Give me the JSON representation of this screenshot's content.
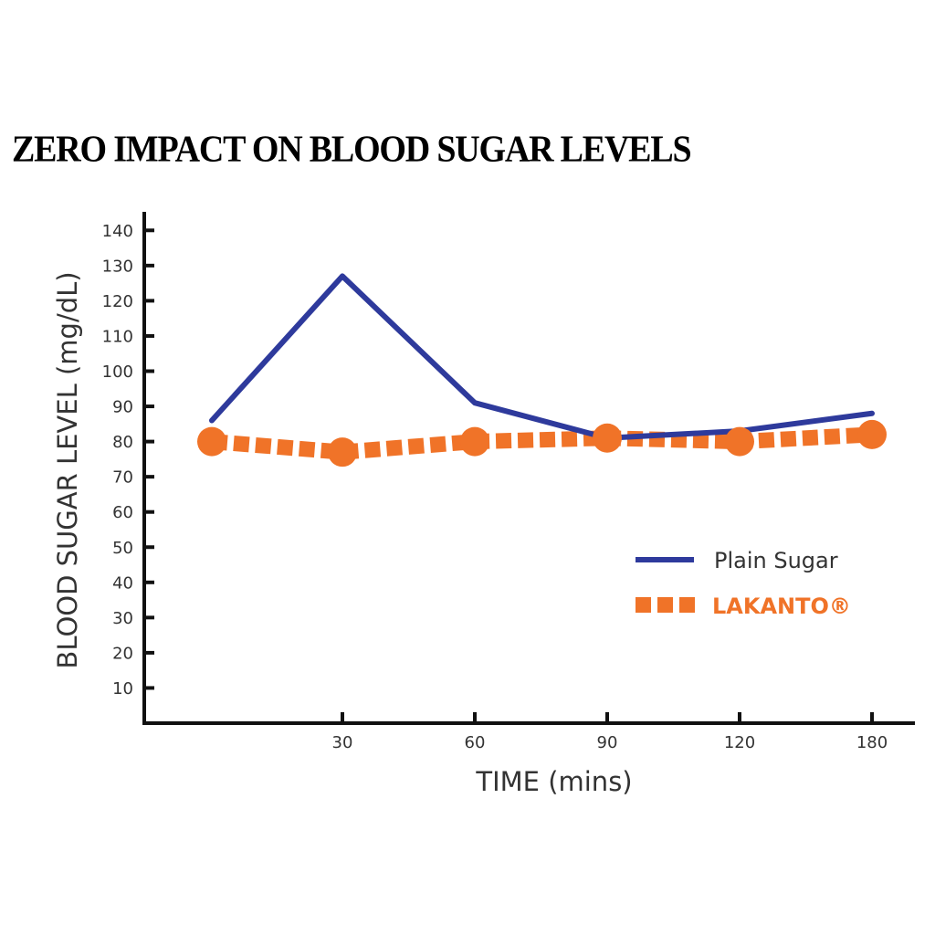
{
  "title": "ZERO IMPACT ON BLOOD SUGAR LEVELS",
  "colors": {
    "plain_sugar": "#2e3a9c",
    "lakanto": "#f07328",
    "axis": "#111111",
    "text": "#333333"
  },
  "chart_data": {
    "type": "line",
    "title": "ZERO IMPACT ON BLOOD SUGAR LEVELS",
    "xlabel": "TIME (mins)",
    "ylabel": "BLOOD SUGAR LEVEL (mg/dL)",
    "x": [
      0,
      30,
      60,
      90,
      120,
      180
    ],
    "x_tick_labels": [
      "",
      "30",
      "60",
      "90",
      "120",
      "180"
    ],
    "y_ticks": [
      10,
      20,
      30,
      40,
      50,
      60,
      70,
      80,
      90,
      100,
      110,
      120,
      130,
      140
    ],
    "ylim": [
      0,
      145
    ],
    "grid": false,
    "legend_position": "right",
    "series": [
      {
        "name": "Plain Sugar",
        "style": "solid",
        "values": [
          86,
          127,
          91,
          81,
          83,
          88
        ]
      },
      {
        "name": "LAKANTO®",
        "style": "dotted-with-markers",
        "values": [
          80,
          77,
          80,
          81,
          80,
          82
        ]
      }
    ]
  }
}
